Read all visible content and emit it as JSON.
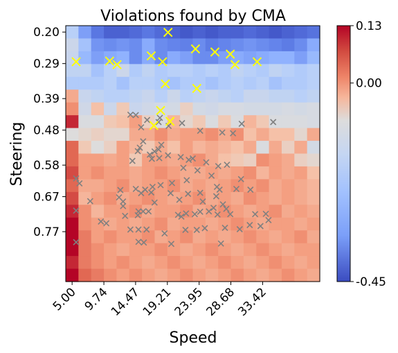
{
  "chart_data": {
    "type": "heatmap",
    "title": "Violations found by CMA",
    "xlabel": "Speed",
    "ylabel": "Steering",
    "x_ticks": [
      "5.00",
      "9.74",
      "14.47",
      "19.21",
      "23.95",
      "28.68",
      "33.42"
    ],
    "y_ticks": [
      "0.20",
      "0.29",
      "0.39",
      "0.48",
      "0.58",
      "0.67",
      "0.77"
    ],
    "colorbar": {
      "min": -0.45,
      "center": 0.0,
      "max": 0.13,
      "tick_labels": [
        "0.13",
        "0.00",
        "-0.45"
      ],
      "colormap": "coolwarm"
    },
    "grid_size": [
      20,
      20
    ],
    "values": [
      [
        -0.1,
        -0.25,
        -0.35,
        -0.4,
        -0.4,
        -0.38,
        -0.35,
        -0.38,
        -0.4,
        -0.42,
        -0.4,
        -0.42,
        -0.4,
        -0.4,
        -0.38,
        -0.4,
        -0.42,
        -0.4,
        -0.38,
        -0.36
      ],
      [
        -0.05,
        -0.15,
        -0.28,
        -0.3,
        -0.28,
        -0.3,
        -0.22,
        -0.3,
        -0.32,
        -0.33,
        -0.3,
        -0.34,
        -0.32,
        -0.3,
        -0.28,
        -0.3,
        -0.32,
        -0.34,
        -0.3,
        -0.22
      ],
      [
        -0.06,
        -0.18,
        -0.25,
        -0.22,
        -0.2,
        -0.3,
        -0.22,
        -0.3,
        -0.22,
        -0.25,
        -0.3,
        -0.3,
        -0.25,
        -0.22,
        -0.24,
        -0.22,
        -0.2,
        -0.2,
        -0.25,
        -0.18
      ],
      [
        -0.08,
        -0.08,
        -0.15,
        -0.1,
        -0.05,
        -0.12,
        -0.08,
        -0.12,
        -0.1,
        -0.1,
        -0.12,
        -0.1,
        -0.12,
        -0.08,
        -0.1,
        -0.12,
        -0.08,
        -0.1,
        -0.12,
        -0.1
      ],
      [
        -0.12,
        -0.12,
        -0.12,
        -0.1,
        -0.15,
        -0.1,
        -0.1,
        -0.12,
        -0.15,
        -0.12,
        -0.12,
        -0.15,
        -0.12,
        -0.1,
        -0.12,
        -0.1,
        -0.15,
        -0.12,
        -0.12,
        -0.1
      ],
      [
        0.06,
        -0.06,
        -0.08,
        -0.1,
        -0.1,
        -0.08,
        -0.06,
        -0.1,
        -0.05,
        -0.1,
        -0.08,
        -0.06,
        -0.08,
        -0.1,
        -0.06,
        -0.06,
        -0.08,
        -0.08,
        -0.1,
        -0.08
      ],
      [
        0.08,
        -0.04,
        0.04,
        -0.05,
        0.03,
        -0.06,
        -0.04,
        -0.03,
        -0.03,
        0.02,
        -0.03,
        -0.04,
        -0.02,
        -0.02,
        -0.03,
        -0.03,
        -0.03,
        -0.02,
        -0.03,
        -0.02
      ],
      [
        0.12,
        -0.01,
        -0.01,
        0.03,
        0.04,
        0.07,
        0.02,
        -0.01,
        0.05,
        0.01,
        0.03,
        -0.01,
        0.03,
        -0.01,
        0.05,
        0.03,
        -0.01,
        -0.01,
        -0.01,
        -0.02
      ],
      [
        0.0,
        0.01,
        0.02,
        0.01,
        0.01,
        0.06,
        0.06,
        0.08,
        0.06,
        0.07,
        0.07,
        0.08,
        0.06,
        0.08,
        0.04,
        0.06,
        0.04,
        0.04,
        0.01,
        0.06
      ],
      [
        0.1,
        0.03,
        0.0,
        0.02,
        0.07,
        0.05,
        0.03,
        0.06,
        0.04,
        0.07,
        0.05,
        0.06,
        0.05,
        0.04,
        0.06,
        -0.01,
        0.06,
        0.02,
        0.06,
        -0.03
      ],
      [
        0.1,
        0.07,
        0.07,
        0.06,
        0.07,
        0.03,
        0.07,
        0.07,
        0.06,
        0.07,
        0.08,
        0.06,
        0.04,
        0.03,
        0.02,
        0.08,
        0.07,
        0.06,
        0.02,
        0.01
      ],
      [
        0.11,
        0.07,
        0.08,
        0.07,
        0.07,
        0.06,
        0.07,
        0.08,
        0.07,
        0.06,
        0.06,
        0.07,
        0.06,
        0.07,
        0.08,
        0.05,
        0.07,
        0.06,
        0.07,
        0.04
      ],
      [
        0.1,
        0.06,
        0.06,
        0.07,
        0.08,
        0.06,
        0.07,
        0.07,
        0.08,
        0.06,
        0.07,
        0.06,
        0.07,
        0.08,
        0.07,
        0.08,
        0.06,
        0.07,
        0.06,
        0.05
      ],
      [
        0.11,
        0.05,
        0.07,
        0.08,
        0.06,
        0.07,
        0.08,
        0.07,
        0.06,
        0.07,
        0.08,
        0.06,
        0.07,
        0.06,
        0.08,
        0.07,
        0.06,
        0.07,
        0.06,
        0.05
      ],
      [
        0.12,
        0.08,
        0.05,
        0.07,
        0.07,
        0.08,
        0.06,
        0.07,
        0.07,
        0.08,
        0.06,
        0.07,
        0.08,
        0.07,
        0.06,
        0.07,
        0.08,
        0.06,
        0.07,
        0.06
      ],
      [
        0.13,
        0.08,
        0.07,
        0.06,
        0.07,
        0.06,
        0.07,
        0.08,
        0.06,
        0.07,
        0.07,
        0.06,
        0.07,
        0.08,
        0.07,
        0.06,
        0.07,
        0.07,
        0.06,
        0.07
      ],
      [
        0.13,
        0.09,
        0.07,
        0.08,
        0.07,
        0.07,
        0.08,
        0.06,
        0.07,
        0.08,
        0.06,
        0.07,
        0.06,
        0.07,
        0.08,
        0.07,
        0.06,
        0.07,
        0.08,
        0.06
      ],
      [
        0.13,
        0.09,
        0.08,
        0.07,
        0.06,
        0.07,
        0.07,
        0.08,
        0.07,
        0.06,
        0.07,
        0.08,
        0.07,
        0.06,
        0.07,
        0.08,
        0.07,
        0.06,
        0.07,
        0.07
      ],
      [
        0.12,
        0.09,
        0.08,
        0.07,
        0.08,
        0.07,
        0.06,
        0.07,
        0.08,
        0.07,
        0.06,
        0.07,
        0.08,
        0.07,
        0.06,
        0.07,
        0.08,
        0.07,
        0.06,
        0.07
      ],
      [
        0.13,
        0.1,
        0.09,
        0.08,
        0.07,
        0.08,
        0.07,
        0.06,
        0.07,
        0.08,
        0.07,
        0.06,
        0.07,
        0.08,
        0.07,
        0.06,
        0.07,
        0.08,
        0.07,
        0.06
      ]
    ],
    "violations": [
      [
        5.6,
        0.285
      ],
      [
        10.6,
        0.283
      ],
      [
        11.7,
        0.293
      ],
      [
        16.8,
        0.268
      ],
      [
        18.5,
        0.285
      ],
      [
        19.3,
        0.201
      ],
      [
        18.9,
        0.348
      ],
      [
        23.6,
        0.361
      ],
      [
        23.4,
        0.248
      ],
      [
        26.3,
        0.257
      ],
      [
        28.6,
        0.263
      ],
      [
        29.3,
        0.293
      ],
      [
        32.6,
        0.285
      ],
      [
        18.2,
        0.424
      ],
      [
        17.2,
        0.467
      ],
      [
        19.6,
        0.455
      ]
    ],
    "samples": [
      [
        13.7,
        0.436
      ],
      [
        14.5,
        0.437
      ],
      [
        18.1,
        0.445
      ],
      [
        16.2,
        0.451
      ],
      [
        17.9,
        0.457
      ],
      [
        21.4,
        0.46
      ],
      [
        15.3,
        0.472
      ],
      [
        19.4,
        0.468
      ],
      [
        30.3,
        0.462
      ],
      [
        35.0,
        0.457
      ],
      [
        24.1,
        0.482
      ],
      [
        27.4,
        0.487
      ],
      [
        29.0,
        0.489
      ],
      [
        15.6,
        0.512
      ],
      [
        15.1,
        0.53
      ],
      [
        14.8,
        0.54
      ],
      [
        18.3,
        0.522
      ],
      [
        17.9,
        0.535
      ],
      [
        21.2,
        0.557
      ],
      [
        22.4,
        0.565
      ],
      [
        17.3,
        0.541
      ],
      [
        16.6,
        0.55
      ],
      [
        16.9,
        0.562
      ],
      [
        18.0,
        0.56
      ],
      [
        14.0,
        0.568
      ],
      [
        19.3,
        0.552
      ],
      [
        23.0,
        0.561
      ],
      [
        25.0,
        0.572
      ],
      [
        26.8,
        0.583
      ],
      [
        28.1,
        0.579
      ],
      [
        21.6,
        0.588
      ],
      [
        23.7,
        0.595
      ],
      [
        25.8,
        0.61
      ],
      [
        22.1,
        0.623
      ],
      [
        19.9,
        0.631
      ],
      [
        18.2,
        0.637
      ],
      [
        17.0,
        0.642
      ],
      [
        19.7,
        0.66
      ],
      [
        16.8,
        0.658
      ],
      [
        15.9,
        0.65
      ],
      [
        15.3,
        0.66
      ],
      [
        22.3,
        0.662
      ],
      [
        24.1,
        0.659
      ],
      [
        26.6,
        0.642
      ],
      [
        27.0,
        0.65
      ],
      [
        29.5,
        0.648
      ],
      [
        30.2,
        0.62
      ],
      [
        31.6,
        0.65
      ],
      [
        21.0,
        0.679
      ],
      [
        24.5,
        0.684
      ],
      [
        26.5,
        0.669
      ],
      [
        27.5,
        0.692
      ],
      [
        28.0,
        0.705
      ],
      [
        26.1,
        0.702
      ],
      [
        25.4,
        0.712
      ],
      [
        26.7,
        0.721
      ],
      [
        28.6,
        0.72
      ],
      [
        32.3,
        0.72
      ],
      [
        33.9,
        0.719
      ],
      [
        34.3,
        0.737
      ],
      [
        31.5,
        0.751
      ],
      [
        33.1,
        0.754
      ],
      [
        24.1,
        0.713
      ],
      [
        23.3,
        0.72
      ],
      [
        22.0,
        0.718
      ],
      [
        21.3,
        0.727
      ],
      [
        20.8,
        0.722
      ],
      [
        17.3,
        0.687
      ],
      [
        16.4,
        0.712
      ],
      [
        15.6,
        0.712
      ],
      [
        14.8,
        0.723
      ],
      [
        14.9,
        0.712
      ],
      [
        12.6,
        0.697
      ],
      [
        12.9,
        0.725
      ],
      [
        12.6,
        0.684
      ],
      [
        10.1,
        0.746
      ],
      [
        13.7,
        0.764
      ],
      [
        14.9,
        0.764
      ],
      [
        16.1,
        0.764
      ],
      [
        18.8,
        0.775
      ],
      [
        21.9,
        0.765
      ],
      [
        23.6,
        0.765
      ],
      [
        24.8,
        0.76
      ],
      [
        27.8,
        0.759
      ],
      [
        30.0,
        0.763
      ],
      [
        19.8,
        0.805
      ],
      [
        14.9,
        0.799
      ],
      [
        15.7,
        0.801
      ],
      [
        27.2,
        0.804
      ],
      [
        5.6,
        0.618
      ],
      [
        6.1,
        0.632
      ],
      [
        7.7,
        0.683
      ],
      [
        5.6,
        0.71
      ],
      [
        5.6,
        0.8
      ],
      [
        9.3,
        0.741
      ],
      [
        12.2,
        0.651
      ],
      [
        14.5,
        0.648
      ],
      [
        12.0,
        0.672
      ]
    ]
  }
}
